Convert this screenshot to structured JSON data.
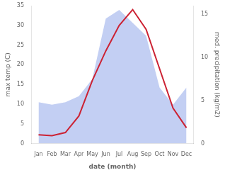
{
  "chart_data": {
    "type": "line",
    "xlabel": "date (month)",
    "ylabel": "max temp (C)",
    "y2label": "med. precipitation (kg/m2)",
    "categories": [
      "Jan",
      "Feb",
      "Mar",
      "Apr",
      "May",
      "Jun",
      "Jul",
      "Aug",
      "Sep",
      "Oct",
      "Nov",
      "Dec"
    ],
    "series": [
      {
        "type": "area",
        "color": "#aabbee",
        "axis": "y2",
        "values": [
          4.8,
          4.5,
          4.8,
          5.5,
          7.5,
          14.5,
          15.5,
          14.0,
          12.5,
          6.5,
          4.5,
          6.5
        ]
      },
      {
        "type": "line",
        "color": "#cc2233",
        "values": [
          2.2,
          2.0,
          2.8,
          7.0,
          16.0,
          23.5,
          30.0,
          34.0,
          29.0,
          19.0,
          9.0,
          4.0
        ]
      }
    ],
    "ylim": [
      0,
      35
    ],
    "yticks": [
      0,
      5,
      10,
      15,
      20,
      25,
      30,
      35
    ],
    "y2lim": [
      0,
      16.0
    ],
    "y2ticks": [
      0,
      5,
      10,
      15
    ],
    "grid": false
  }
}
